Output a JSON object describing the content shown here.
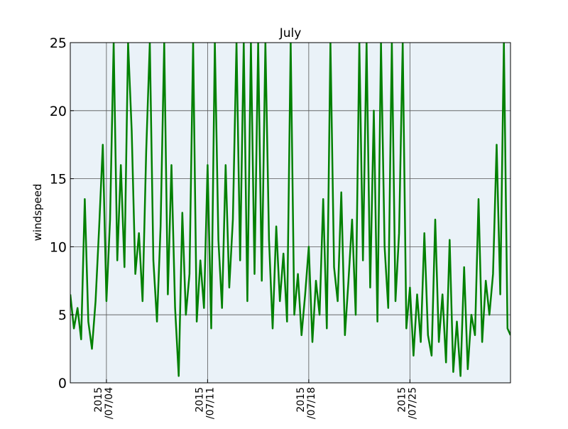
{
  "chart_data": {
    "type": "line",
    "title": "July",
    "xlabel": "",
    "ylabel": "windspeed",
    "x_range": [
      "2015-07-01T12:00",
      "2015-07-31T23:00"
    ],
    "ylim": [
      0,
      25
    ],
    "yticks": [
      0,
      5,
      10,
      15,
      20,
      25
    ],
    "xticks": [
      {
        "date": "2015-07-04",
        "label": "2015\n/07/04"
      },
      {
        "date": "2015-07-11",
        "label": "2015\n/07/11"
      },
      {
        "date": "2015-07-18",
        "label": "2015\n/07/18"
      },
      {
        "date": "2015-07-25",
        "label": "2015\n/07/25"
      }
    ],
    "grid": true,
    "background_color": "#EAF2F8",
    "series": [
      {
        "name": "",
        "color": "#008000",
        "points": [
          [
            "2015-07-01T12:00",
            6.5
          ],
          [
            "2015-07-01T18:00",
            4.0
          ],
          [
            "2015-07-02T00:00",
            5.5
          ],
          [
            "2015-07-02T06:00",
            3.2
          ],
          [
            "2015-07-02T12:00",
            13.5
          ],
          [
            "2015-07-02T18:00",
            4.5
          ],
          [
            "2015-07-03T00:00",
            2.5
          ],
          [
            "2015-07-03T06:00",
            6.0
          ],
          [
            "2015-07-03T12:00",
            11.5
          ],
          [
            "2015-07-03T18:00",
            17.5
          ],
          [
            "2015-07-04T00:00",
            6.0
          ],
          [
            "2015-07-04T06:00",
            12.0
          ],
          [
            "2015-07-04T12:00",
            25.0
          ],
          [
            "2015-07-04T18:00",
            9.0
          ],
          [
            "2015-07-05T00:00",
            16.0
          ],
          [
            "2015-07-05T06:00",
            8.5
          ],
          [
            "2015-07-05T12:00",
            25.0
          ],
          [
            "2015-07-05T18:00",
            18.5
          ],
          [
            "2015-07-06T00:00",
            8.0
          ],
          [
            "2015-07-06T06:00",
            11.0
          ],
          [
            "2015-07-06T12:00",
            6.0
          ],
          [
            "2015-07-06T18:00",
            17.0
          ],
          [
            "2015-07-07T00:00",
            25.0
          ],
          [
            "2015-07-07T06:00",
            9.0
          ],
          [
            "2015-07-07T12:00",
            4.5
          ],
          [
            "2015-07-07T18:00",
            11.5
          ],
          [
            "2015-07-08T00:00",
            25.0
          ],
          [
            "2015-07-08T06:00",
            6.5
          ],
          [
            "2015-07-08T12:00",
            16.0
          ],
          [
            "2015-07-08T18:00",
            5.5
          ],
          [
            "2015-07-09T00:00",
            0.5
          ],
          [
            "2015-07-09T06:00",
            12.5
          ],
          [
            "2015-07-09T12:00",
            5.0
          ],
          [
            "2015-07-09T18:00",
            8.0
          ],
          [
            "2015-07-10T00:00",
            25.0
          ],
          [
            "2015-07-10T06:00",
            4.5
          ],
          [
            "2015-07-10T12:00",
            9.0
          ],
          [
            "2015-07-10T18:00",
            5.5
          ],
          [
            "2015-07-11T00:00",
            16.0
          ],
          [
            "2015-07-11T06:00",
            4.0
          ],
          [
            "2015-07-11T12:00",
            25.0
          ],
          [
            "2015-07-11T18:00",
            10.5
          ],
          [
            "2015-07-12T00:00",
            5.5
          ],
          [
            "2015-07-12T06:00",
            16.0
          ],
          [
            "2015-07-12T12:00",
            7.0
          ],
          [
            "2015-07-12T18:00",
            12.0
          ],
          [
            "2015-07-13T00:00",
            25.0
          ],
          [
            "2015-07-13T06:00",
            9.0
          ],
          [
            "2015-07-13T12:00",
            25.0
          ],
          [
            "2015-07-13T18:00",
            6.0
          ],
          [
            "2015-07-14T00:00",
            25.0
          ],
          [
            "2015-07-14T06:00",
            8.0
          ],
          [
            "2015-07-14T12:00",
            25.0
          ],
          [
            "2015-07-14T18:00",
            7.5
          ],
          [
            "2015-07-15T00:00",
            25.0
          ],
          [
            "2015-07-15T06:00",
            10.5
          ],
          [
            "2015-07-15T12:00",
            4.0
          ],
          [
            "2015-07-15T18:00",
            11.5
          ],
          [
            "2015-07-16T00:00",
            6.0
          ],
          [
            "2015-07-16T06:00",
            9.5
          ],
          [
            "2015-07-16T12:00",
            4.5
          ],
          [
            "2015-07-16T18:00",
            25.0
          ],
          [
            "2015-07-17T00:00",
            5.0
          ],
          [
            "2015-07-17T06:00",
            8.0
          ],
          [
            "2015-07-17T12:00",
            3.5
          ],
          [
            "2015-07-17T18:00",
            6.5
          ],
          [
            "2015-07-18T00:00",
            10.0
          ],
          [
            "2015-07-18T06:00",
            3.0
          ],
          [
            "2015-07-18T12:00",
            7.5
          ],
          [
            "2015-07-18T18:00",
            5.0
          ],
          [
            "2015-07-19T00:00",
            13.5
          ],
          [
            "2015-07-19T06:00",
            4.0
          ],
          [
            "2015-07-19T12:00",
            25.0
          ],
          [
            "2015-07-19T18:00",
            8.5
          ],
          [
            "2015-07-20T00:00",
            6.0
          ],
          [
            "2015-07-20T06:00",
            14.0
          ],
          [
            "2015-07-20T12:00",
            3.5
          ],
          [
            "2015-07-20T18:00",
            7.5
          ],
          [
            "2015-07-21T00:00",
            12.0
          ],
          [
            "2015-07-21T06:00",
            5.0
          ],
          [
            "2015-07-21T12:00",
            25.0
          ],
          [
            "2015-07-21T18:00",
            9.0
          ],
          [
            "2015-07-22T00:00",
            25.0
          ],
          [
            "2015-07-22T06:00",
            7.0
          ],
          [
            "2015-07-22T12:00",
            20.0
          ],
          [
            "2015-07-22T18:00",
            4.5
          ],
          [
            "2015-07-23T00:00",
            25.0
          ],
          [
            "2015-07-23T06:00",
            10.0
          ],
          [
            "2015-07-23T12:00",
            5.5
          ],
          [
            "2015-07-23T18:00",
            25.0
          ],
          [
            "2015-07-24T00:00",
            6.0
          ],
          [
            "2015-07-24T06:00",
            11.0
          ],
          [
            "2015-07-24T12:00",
            25.0
          ],
          [
            "2015-07-24T18:00",
            4.0
          ],
          [
            "2015-07-25T00:00",
            7.0
          ],
          [
            "2015-07-25T06:00",
            2.0
          ],
          [
            "2015-07-25T12:00",
            6.5
          ],
          [
            "2015-07-25T18:00",
            3.0
          ],
          [
            "2015-07-26T00:00",
            11.0
          ],
          [
            "2015-07-26T06:00",
            3.5
          ],
          [
            "2015-07-26T12:00",
            2.0
          ],
          [
            "2015-07-26T18:00",
            12.0
          ],
          [
            "2015-07-27T00:00",
            3.0
          ],
          [
            "2015-07-27T06:00",
            6.5
          ],
          [
            "2015-07-27T12:00",
            1.5
          ],
          [
            "2015-07-27T18:00",
            10.5
          ],
          [
            "2015-07-28T00:00",
            0.8
          ],
          [
            "2015-07-28T06:00",
            4.5
          ],
          [
            "2015-07-28T12:00",
            0.5
          ],
          [
            "2015-07-28T18:00",
            8.5
          ],
          [
            "2015-07-29T00:00",
            1.0
          ],
          [
            "2015-07-29T06:00",
            5.0
          ],
          [
            "2015-07-29T12:00",
            3.5
          ],
          [
            "2015-07-29T18:00",
            13.5
          ],
          [
            "2015-07-30T00:00",
            3.0
          ],
          [
            "2015-07-30T06:00",
            7.5
          ],
          [
            "2015-07-30T12:00",
            5.0
          ],
          [
            "2015-07-30T18:00",
            8.0
          ],
          [
            "2015-07-31T00:00",
            17.5
          ],
          [
            "2015-07-31T06:00",
            6.5
          ],
          [
            "2015-07-31T12:00",
            25.0
          ],
          [
            "2015-07-31T18:00",
            4.0
          ],
          [
            "2015-07-31T23:00",
            3.5
          ]
        ]
      }
    ]
  }
}
